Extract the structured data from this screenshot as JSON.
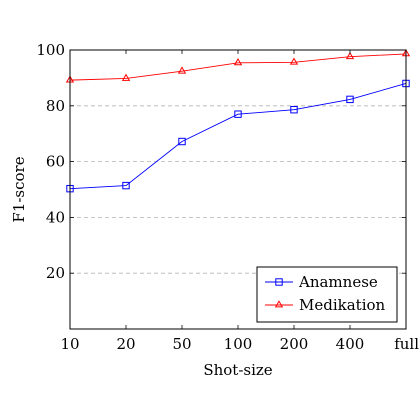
{
  "chart_data": {
    "type": "line",
    "title": "",
    "xlabel": "Shot-size",
    "ylabel": "F1-score",
    "categories": [
      "10",
      "20",
      "50",
      "100",
      "200",
      "400",
      "full"
    ],
    "ylim": [
      0,
      100
    ],
    "yticks": [
      20,
      40,
      60,
      80,
      100
    ],
    "grid": "horizontal-dashed",
    "legend_position": "bottom-right",
    "series": [
      {
        "name": "Anamnese",
        "color": "#0000ff",
        "marker": "square",
        "values": [
          50.3,
          51.4,
          67.2,
          77.0,
          78.6,
          82.3,
          88.0
        ]
      },
      {
        "name": "Medikation",
        "color": "#ff0000",
        "marker": "triangle",
        "values": [
          89.2,
          89.8,
          92.4,
          95.4,
          95.6,
          97.6,
          98.6
        ]
      }
    ]
  }
}
